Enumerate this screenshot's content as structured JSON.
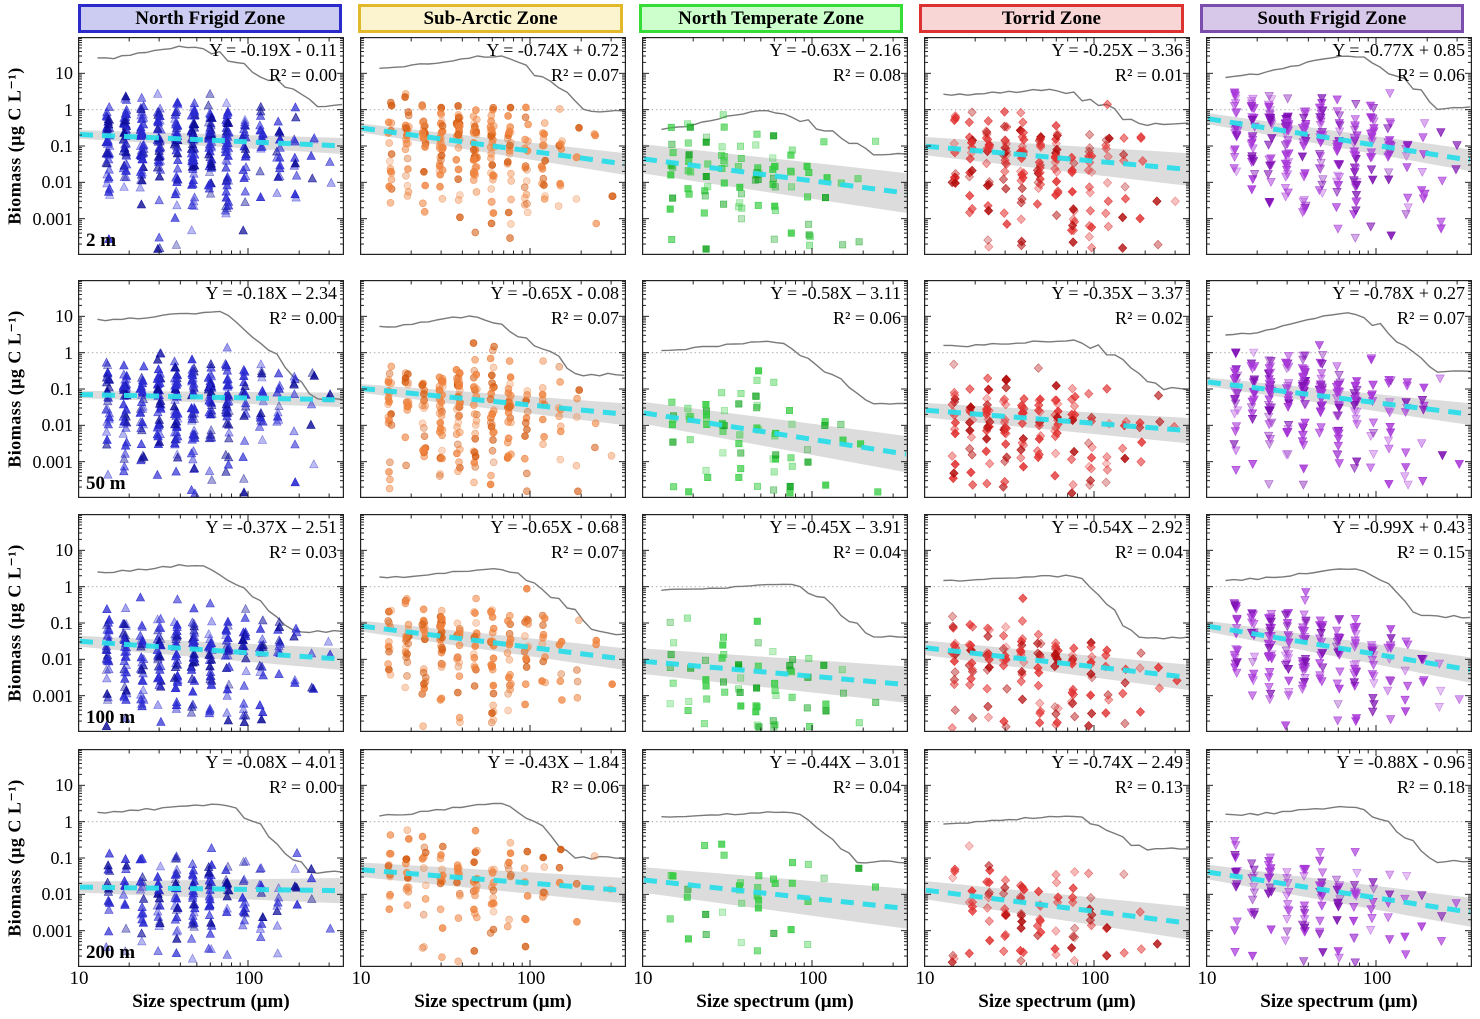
{
  "figure": {
    "y_axis_label": "Biomass (μg C L⁻¹)",
    "x_axis_label": "Size spectrum (μm)",
    "y_tick_labels": [
      "10",
      "1",
      "0.1",
      "0.01",
      "0.001"
    ],
    "x_tick_labels": [
      "10",
      "100"
    ]
  },
  "chart_data": {
    "type": "scatter",
    "x_scale": "log",
    "y_scale": "log",
    "xlim": [
      10,
      367
    ],
    "ylim": [
      0.0001,
      100
    ],
    "xlabel": "Size spectrum (μm)",
    "ylabel": "Biomass (μg C L⁻¹)",
    "reference_line_y": 1,
    "grid": "off",
    "styles": {
      "trend_line_color": "#2bdce8",
      "confidence_band_color": "#bfbfbf",
      "spectrum_line_color": "#7a7a7a",
      "reference_line_color": "#b5b5b5",
      "panel_border_color": "#222222"
    },
    "depths": [
      "2 m",
      "50 m",
      "100 m",
      "200 m"
    ],
    "row_density_scale": [
      1.0,
      0.8,
      0.7,
      0.45
    ],
    "row_top_cap_log10": [
      0.5,
      0.35,
      0.1,
      -0.2
    ],
    "x_bins": [
      15,
      18.9,
      23.8,
      30,
      37.8,
      47.6,
      60,
      75.6,
      95.2,
      120,
      151,
      190,
      240,
      302
    ],
    "bin_weights": [
      0.9,
      1,
      1.15,
      1.25,
      1.3,
      1.25,
      1.15,
      1,
      0.7,
      0.5,
      0.35,
      0.22,
      0.12,
      0.06
    ],
    "zones": [
      {
        "name": "North Frigid Zone",
        "header_fill": "#ccccf2",
        "header_border": "#2b2bcc",
        "marker": "triangle-up",
        "color": "#2a2ad2",
        "color_dark": "#0d0d98",
        "density": 40,
        "sigma_up": 0.5,
        "sigma_down": 0.85
      },
      {
        "name": "Sub-Arctic Zone",
        "header_fill": "#fcf3cf",
        "header_border": "#e2b92b",
        "marker": "circle",
        "color": "#ef8440",
        "color_dark": "#d45c12",
        "density": 24,
        "sigma_up": 0.55,
        "sigma_down": 0.9
      },
      {
        "name": "North Temperate Zone",
        "header_fill": "#ccffcc",
        "header_border": "#37dd37",
        "marker": "square",
        "color": "#35cc41",
        "color_dark": "#12a51f",
        "density": 8,
        "sigma_up": 0.6,
        "sigma_down": 0.95
      },
      {
        "name": "Torrid Zone",
        "header_fill": "#f8d6d6",
        "header_border": "#dd3232",
        "marker": "diamond",
        "color": "#e23232",
        "color_dark": "#b30d0d",
        "density": 18,
        "sigma_up": 0.5,
        "sigma_down": 0.95
      },
      {
        "name": "South Frigid Zone",
        "header_fill": "#d7c8ea",
        "header_border": "#7b4dad",
        "marker": "triangle-down",
        "color": "#a837d8",
        "color_dark": "#7e10b2",
        "density": 26,
        "sigma_up": 0.5,
        "sigma_down": 0.9
      }
    ],
    "panels": [
      {
        "zone": 0,
        "depth": 0,
        "equation": "Y = -0.19X - 0.11",
        "r2": "R² = 0.00",
        "slope": -0.19,
        "intercept": -0.11,
        "r2_value": 0.0,
        "trend": [
          -0.68,
          -1.0
        ],
        "band": [
          0.12,
          0.22
        ],
        "gray": [
          25,
          55,
          1.3
        ],
        "seed": 11
      },
      {
        "zone": 1,
        "depth": 0,
        "equation": "Y = -0.74X + 0.72",
        "r2": "R² = 0.07",
        "slope": -0.74,
        "intercept": 0.72,
        "r2_value": 0.07,
        "trend": [
          -0.5,
          -1.5
        ],
        "band": [
          0.12,
          0.3
        ],
        "gray": [
          14,
          30,
          0.9
        ],
        "seed": 22
      },
      {
        "zone": 2,
        "depth": 0,
        "equation": "Y = -0.63X – 2.16",
        "r2": "R² = 0.08",
        "slope": -0.63,
        "intercept": -2.16,
        "r2_value": 0.08,
        "trend": [
          -1.35,
          -2.3
        ],
        "band": [
          0.4,
          0.55
        ],
        "gray": [
          0.3,
          0.9,
          0.06
        ],
        "seed": 33
      },
      {
        "zone": 3,
        "depth": 0,
        "equation": "Y = -0.25X – 3.36",
        "r2": "R² = 0.01",
        "slope": -0.25,
        "intercept": -3.36,
        "r2_value": 0.01,
        "trend": [
          -1.0,
          -1.65
        ],
        "band": [
          0.25,
          0.45
        ],
        "gray": [
          2.5,
          3.5,
          0.4
        ],
        "seed": 44
      },
      {
        "zone": 4,
        "depth": 0,
        "equation": "Y = -0.77X + 0.85",
        "r2": "R² = 0.06",
        "slope": -0.77,
        "intercept": 0.85,
        "r2_value": 0.06,
        "trend": [
          -0.24,
          -1.4
        ],
        "band": [
          0.15,
          0.3
        ],
        "gray": [
          8,
          30,
          1.1
        ],
        "seed": 55
      },
      {
        "zone": 0,
        "depth": 1,
        "equation": "Y = -0.18X – 2.34",
        "r2": "R² = 0.00",
        "slope": -0.18,
        "intercept": -2.34,
        "r2_value": 0.0,
        "trend": [
          -1.15,
          -1.3
        ],
        "band": [
          0.1,
          0.2
        ],
        "gray": [
          8,
          13,
          0.05
        ],
        "seed": 66
      },
      {
        "zone": 1,
        "depth": 1,
        "equation": "Y = -0.65X - 0.08",
        "r2": "R² = 0.07",
        "slope": -0.65,
        "intercept": -0.08,
        "r2_value": 0.07,
        "trend": [
          -0.98,
          -1.7
        ],
        "band": [
          0.12,
          0.3
        ],
        "gray": [
          5,
          10,
          0.25
        ],
        "seed": 77
      },
      {
        "zone": 2,
        "depth": 1,
        "equation": "Y = -0.58X – 3.11",
        "r2": "R² = 0.06",
        "slope": -0.58,
        "intercept": -3.11,
        "r2_value": 0.06,
        "trend": [
          -1.65,
          -2.8
        ],
        "band": [
          0.3,
          0.5
        ],
        "gray": [
          1.2,
          2.0,
          0.04
        ],
        "seed": 88
      },
      {
        "zone": 3,
        "depth": 1,
        "equation": "Y = -0.35X – 3.37",
        "r2": "R² = 0.02",
        "slope": -0.35,
        "intercept": -3.37,
        "r2_value": 0.02,
        "trend": [
          -1.58,
          -2.15
        ],
        "band": [
          0.2,
          0.35
        ],
        "gray": [
          1.5,
          2.2,
          0.1
        ],
        "seed": 99
      },
      {
        "zone": 4,
        "depth": 1,
        "equation": "Y = -0.78X + 0.27",
        "r2": "R² = 0.07",
        "slope": -0.78,
        "intercept": 0.27,
        "r2_value": 0.07,
        "trend": [
          -0.8,
          -1.7
        ],
        "band": [
          0.12,
          0.3
        ],
        "gray": [
          3,
          12,
          0.3
        ],
        "seed": 110
      },
      {
        "zone": 0,
        "depth": 2,
        "equation": "Y = -0.37X – 2.51",
        "r2": "R² = 0.03",
        "slope": -0.37,
        "intercept": -2.51,
        "r2_value": 0.03,
        "trend": [
          -1.5,
          -2.0
        ],
        "band": [
          0.15,
          0.3
        ],
        "gray": [
          2.5,
          4,
          0.06
        ],
        "seed": 121
      },
      {
        "zone": 1,
        "depth": 2,
        "equation": "Y = -0.65X - 0.68",
        "r2": "R² = 0.07",
        "slope": -0.65,
        "intercept": -0.68,
        "r2_value": 0.07,
        "trend": [
          -1.08,
          -2.0
        ],
        "band": [
          0.15,
          0.3
        ],
        "gray": [
          1.8,
          3,
          0.05
        ],
        "seed": 132
      },
      {
        "zone": 2,
        "depth": 2,
        "equation": "Y = -0.45X – 3.91",
        "r2": "R² = 0.04",
        "slope": -0.45,
        "intercept": -3.91,
        "r2_value": 0.04,
        "trend": [
          -2.05,
          -2.7
        ],
        "band": [
          0.35,
          0.5
        ],
        "gray": [
          0.8,
          1.1,
          0.04
        ],
        "seed": 143
      },
      {
        "zone": 3,
        "depth": 2,
        "equation": "Y = -0.54X – 2.92",
        "r2": "R² = 0.04",
        "slope": -0.54,
        "intercept": -2.92,
        "r2_value": 0.04,
        "trend": [
          -1.68,
          -2.5
        ],
        "band": [
          0.2,
          0.35
        ],
        "gray": [
          1.5,
          2,
          0.04
        ],
        "seed": 154
      },
      {
        "zone": 4,
        "depth": 2,
        "equation": "Y = -0.99X + 0.43",
        "r2": "R² = 0.15",
        "slope": -0.99,
        "intercept": 0.43,
        "r2_value": 0.15,
        "trend": [
          -1.08,
          -2.3
        ],
        "band": [
          0.15,
          0.35
        ],
        "gray": [
          1.5,
          3,
          0.15
        ],
        "seed": 165
      },
      {
        "zone": 0,
        "depth": 3,
        "equation": "Y = -0.08X – 4.01",
        "r2": "R² = 0.00",
        "slope": -0.08,
        "intercept": -4.01,
        "r2_value": 0.0,
        "trend": [
          -1.8,
          -1.9
        ],
        "band": [
          0.15,
          0.35
        ],
        "gray": [
          1.8,
          3,
          0.04
        ],
        "seed": 176
      },
      {
        "zone": 1,
        "depth": 3,
        "equation": "Y = -0.43X – 1.84",
        "r2": "R² = 0.06",
        "slope": -0.43,
        "intercept": -1.84,
        "r2_value": 0.06,
        "trend": [
          -1.32,
          -1.9
        ],
        "band": [
          0.2,
          0.35
        ],
        "gray": [
          1.5,
          3,
          0.1
        ],
        "seed": 187
      },
      {
        "zone": 2,
        "depth": 3,
        "equation": "Y = -0.44X – 3.01",
        "r2": "R² = 0.04",
        "slope": -0.44,
        "intercept": -3.01,
        "r2_value": 0.04,
        "trend": [
          -1.6,
          -2.4
        ],
        "band": [
          0.35,
          0.55
        ],
        "gray": [
          1.4,
          1.8,
          0.08
        ],
        "seed": 198
      },
      {
        "zone": 3,
        "depth": 3,
        "equation": "Y = -0.74X – 2.49",
        "r2": "R² = 0.13",
        "slope": -0.74,
        "intercept": -2.49,
        "r2_value": 0.13,
        "trend": [
          -1.88,
          -2.8
        ],
        "band": [
          0.25,
          0.45
        ],
        "gray": [
          0.9,
          1.4,
          0.18
        ],
        "seed": 209
      },
      {
        "zone": 4,
        "depth": 3,
        "equation": "Y = -0.88X - 0.96",
        "r2": "R² = 0.18",
        "slope": -0.88,
        "intercept": -0.96,
        "r2_value": 0.18,
        "trend": [
          -1.38,
          -2.5
        ],
        "band": [
          0.2,
          0.4
        ],
        "gray": [
          1.5,
          2.5,
          0.08
        ],
        "seed": 220
      }
    ]
  }
}
